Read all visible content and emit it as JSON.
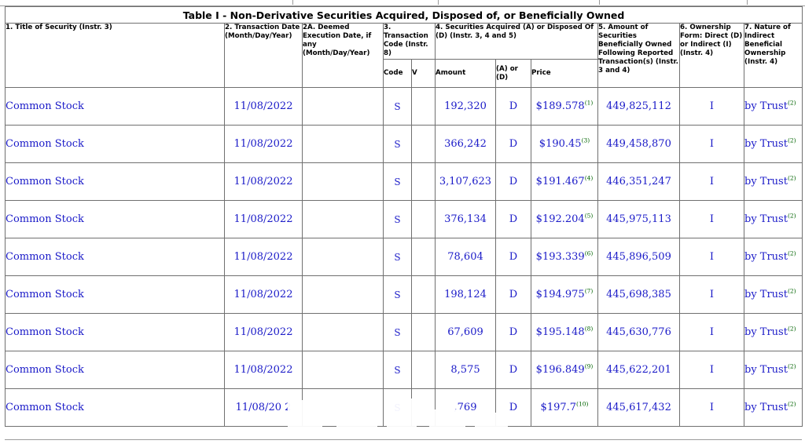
{
  "table": {
    "caption": "Table I - Non-Derivative Securities Acquired, Disposed of, or Beneficially Owned",
    "headers": {
      "title": "1. Title of Security (Instr. 3)",
      "transaction_date": "2. Transaction Date (Month/Day/Year)",
      "deemed_date": "2A. Deemed Execution Date, if any (Month/Day/Year)",
      "transaction_code": "3. Transaction Code (Instr. 8)",
      "acquired_disposed": "4. Securities Acquired (A) or Disposed Of (D) (Instr. 3, 4 and 5)",
      "amount_owned": "5. Amount of Securities Beneficially Owned Following Reported Transaction(s) (Instr. 3 and 4)",
      "ownership_form": "6. Ownership Form: Direct (D) or Indirect (I) (Instr. 4)",
      "nature": "7. Nature of Indirect Beneficial Ownership (Instr. 4)",
      "code": "Code",
      "v": "V",
      "amount": "Amount",
      "a_or_d": "(A) or (D)",
      "price": "Price"
    },
    "rows": [
      {
        "title": "Common Stock",
        "date": "11/08/2022",
        "code": "S",
        "amount": "192,320",
        "ad": "D",
        "price": "$189.578",
        "price_fn": "(1)",
        "owned": "449,825,112",
        "form": "I",
        "nature": "by Trust",
        "nature_fn": "(2)"
      },
      {
        "title": "Common Stock",
        "date": "11/08/2022",
        "code": "S",
        "amount": "366,242",
        "ad": "D",
        "price": "$190.45",
        "price_fn": "(3)",
        "owned": "449,458,870",
        "form": "I",
        "nature": "by Trust",
        "nature_fn": "(2)"
      },
      {
        "title": "Common Stock",
        "date": "11/08/2022",
        "code": "S",
        "amount": "3,107,623",
        "ad": "D",
        "price": "$191.467",
        "price_fn": "(4)",
        "owned": "446,351,247",
        "form": "I",
        "nature": "by Trust",
        "nature_fn": "(2)"
      },
      {
        "title": "Common Stock",
        "date": "11/08/2022",
        "code": "S",
        "amount": "376,134",
        "ad": "D",
        "price": "$192.204",
        "price_fn": "(5)",
        "owned": "445,975,113",
        "form": "I",
        "nature": "by Trust",
        "nature_fn": "(2)"
      },
      {
        "title": "Common Stock",
        "date": "11/08/2022",
        "code": "S",
        "amount": "78,604",
        "ad": "D",
        "price": "$193.339",
        "price_fn": "(6)",
        "owned": "445,896,509",
        "form": "I",
        "nature": "by Trust",
        "nature_fn": "(2)"
      },
      {
        "title": "Common Stock",
        "date": "11/08/2022",
        "code": "S",
        "amount": "198,124",
        "ad": "D",
        "price": "$194.975",
        "price_fn": "(7)",
        "owned": "445,698,385",
        "form": "I",
        "nature": "by Trust",
        "nature_fn": "(2)"
      },
      {
        "title": "Common Stock",
        "date": "11/08/2022",
        "code": "S",
        "amount": "67,609",
        "ad": "D",
        "price": "$195.148",
        "price_fn": "(8)",
        "owned": "445,630,776",
        "form": "I",
        "nature": "by Trust",
        "nature_fn": "(2)"
      },
      {
        "title": "Common Stock",
        "date": "11/08/2022",
        "code": "S",
        "amount": "8,575",
        "ad": "D",
        "price": "$196.849",
        "price_fn": "(9)",
        "owned": "445,622,201",
        "form": "I",
        "nature": "by Trust",
        "nature_fn": "(2)"
      },
      {
        "title": "Common Stock",
        "date": "11/08/20  2",
        "code": "S",
        "amount": ",769",
        "ad": "D",
        "price": "$197.7",
        "price_fn": "(10)",
        "owned": "445,617,432",
        "form": "I",
        "nature": "by Trust",
        "nature_fn": "(2)"
      }
    ]
  },
  "colors": {
    "value_text": "#1a1ac8",
    "footnote": "#006400",
    "border": "#707070"
  }
}
